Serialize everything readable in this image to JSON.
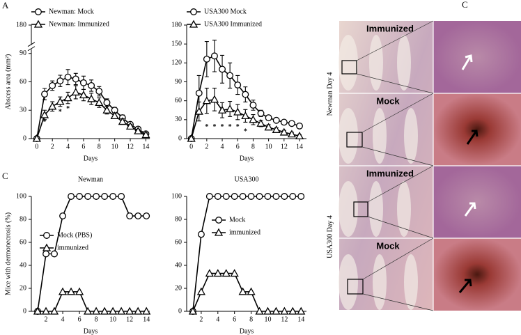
{
  "panel_labels": [
    "A",
    "C",
    "C"
  ],
  "photo_panel": {
    "row_labels": [
      "Immunized",
      "Mock",
      "Immunized",
      "Mock"
    ],
    "side_labels": [
      "Newman Day 4",
      "USA300 Day 4"
    ]
  },
  "chart_data": [
    {
      "type": "line",
      "xlabel": "Days",
      "ylabel": "Abscess area (mm²)",
      "x": [
        0,
        1,
        2,
        3,
        4,
        5,
        6,
        7,
        8,
        9,
        10,
        11,
        12,
        13,
        14
      ],
      "xlim": [
        -0.7,
        14.5
      ],
      "xticks": [
        0,
        2,
        4,
        6,
        8,
        10,
        12,
        14
      ],
      "ylim": [
        0,
        180
      ],
      "yticks": [
        0,
        30,
        60,
        90,
        180
      ],
      "y_break": [
        90,
        170
      ],
      "legend": "top-left",
      "series": [
        {
          "name": "Newman: Mock",
          "marker": "circle",
          "color": "#000000",
          "values": [
            0,
            47,
            56,
            61,
            65,
            63,
            59,
            56,
            50,
            38,
            30,
            22,
            15,
            10,
            5
          ],
          "errors": [
            0,
            6,
            5,
            6,
            8,
            6,
            7,
            6,
            5,
            4,
            3,
            3,
            2,
            2,
            2
          ]
        },
        {
          "name": "Newman: Immunized",
          "marker": "triangle",
          "color": "#000000",
          "values": [
            0,
            25,
            34,
            39,
            43,
            49,
            46,
            42,
            38,
            30,
            24,
            18,
            13,
            8,
            4
          ],
          "errors": [
            0,
            5,
            5,
            5,
            6,
            7,
            6,
            6,
            5,
            4,
            3,
            3,
            2,
            2,
            2
          ]
        }
      ],
      "annotations": [
        {
          "text": "*",
          "x": 1,
          "y": 17
        },
        {
          "text": "*",
          "x": 3,
          "y": 28
        },
        {
          "text": "*",
          "x": 4,
          "y": 31
        }
      ]
    },
    {
      "type": "line",
      "xlabel": "Days",
      "x": [
        0,
        1,
        2,
        3,
        4,
        5,
        6,
        7,
        8,
        9,
        10,
        11,
        12,
        13,
        14
      ],
      "xlim": [
        -0.6,
        14.9
      ],
      "xticks": [
        0,
        2,
        4,
        6,
        8,
        10,
        12,
        14
      ],
      "ylim": [
        0,
        180
      ],
      "yticks": [
        0,
        30,
        60,
        90,
        120,
        150,
        180
      ],
      "legend": "top-left",
      "series": [
        {
          "name": "USA300 Mock",
          "marker": "circle",
          "color": "#000000",
          "values": [
            0,
            72,
            126,
            131,
            110,
            100,
            85,
            70,
            53,
            40,
            33,
            29,
            26,
            24,
            20
          ],
          "errors": [
            0,
            28,
            28,
            25,
            22,
            20,
            15,
            12,
            8,
            5,
            4,
            3,
            3,
            3,
            2
          ]
        },
        {
          "name": "USA300 Immunized",
          "marker": "triangle",
          "color": "#000000",
          "values": [
            0,
            43,
            60,
            62,
            45,
            47,
            42,
            36,
            30,
            24,
            18,
            14,
            10,
            7,
            4
          ],
          "errors": [
            0,
            15,
            20,
            18,
            12,
            12,
            12,
            10,
            8,
            5,
            4,
            3,
            3,
            3,
            2
          ]
        }
      ],
      "annotations": [
        {
          "text": "*",
          "x": 2,
          "y": 18
        },
        {
          "text": "*",
          "x": 3,
          "y": 18
        },
        {
          "text": "*",
          "x": 4,
          "y": 18
        },
        {
          "text": "*",
          "x": 5,
          "y": 18
        },
        {
          "text": "*",
          "x": 6,
          "y": 18
        },
        {
          "text": "*",
          "x": 7,
          "y": 11
        }
      ]
    },
    {
      "type": "line",
      "title": "Newman",
      "xlabel": "Days",
      "ylabel": "Mice with dermonecrosis (%)",
      "x": [
        1,
        2,
        3,
        4,
        5,
        6,
        7,
        8,
        9,
        10,
        11,
        12,
        13,
        14
      ],
      "xlim": [
        0.25,
        14.4
      ],
      "xticks": [
        2,
        4,
        6,
        8,
        10,
        12,
        14
      ],
      "ylim": [
        0,
        100
      ],
      "yticks": [
        0,
        20,
        40,
        60,
        80,
        100
      ],
      "legend": "center",
      "series": [
        {
          "name": "Mock (PBS)",
          "marker": "circle",
          "color": "#000000",
          "values": [
            0,
            50,
            50,
            83,
            100,
            100,
            100,
            100,
            100,
            100,
            100,
            83,
            83,
            83
          ]
        },
        {
          "name": "immunized",
          "marker": "triangle",
          "color": "#000000",
          "values": [
            0,
            0,
            0,
            17,
            17,
            17,
            0,
            0,
            0,
            0,
            0,
            0,
            0,
            0
          ]
        }
      ]
    },
    {
      "type": "line",
      "title": "USA300",
      "xlabel": "Days",
      "x": [
        1,
        2,
        3,
        4,
        5,
        6,
        7,
        8,
        9,
        10,
        11,
        12,
        13,
        14
      ],
      "xlim": [
        0.25,
        14.65
      ],
      "xticks": [
        2,
        4,
        6,
        8,
        10,
        12,
        14
      ],
      "ylim": [
        0,
        100
      ],
      "yticks": [
        0,
        20,
        40,
        60,
        80,
        100
      ],
      "legend": "center-right",
      "series": [
        {
          "name": "Mock",
          "marker": "circle",
          "color": "#000000",
          "values": [
            0,
            67,
            100,
            100,
            100,
            100,
            100,
            100,
            100,
            100,
            100,
            100,
            100,
            100
          ]
        },
        {
          "name": "immunized",
          "marker": "triangle",
          "color": "#000000",
          "values": [
            0,
            17,
            33,
            33,
            33,
            33,
            17,
            17,
            0,
            0,
            0,
            0,
            0,
            0
          ]
        }
      ]
    }
  ]
}
